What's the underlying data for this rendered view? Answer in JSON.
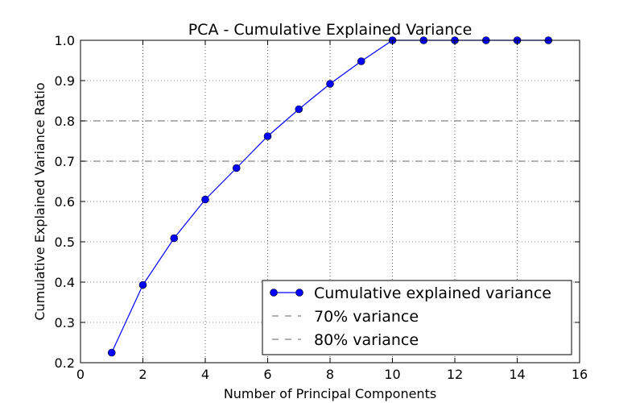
{
  "chart_data": {
    "type": "line",
    "title": "PCA - Cumulative Explained Variance",
    "xlabel": "Number of Principal Components",
    "ylabel": "Cumulative Explained Variance Ratio",
    "xlim": [
      0,
      16
    ],
    "ylim": [
      0.2,
      1.0
    ],
    "xticks": [
      "0",
      "2",
      "4",
      "6",
      "8",
      "10",
      "12",
      "14",
      "16"
    ],
    "yticks": [
      "0.2",
      "0.3",
      "0.4",
      "0.5",
      "0.6",
      "0.7",
      "0.8",
      "0.9",
      "1.0"
    ],
    "grid": true,
    "legend_position": "bottom-right",
    "series": [
      {
        "name": "Cumulative explained variance",
        "color": "#0000ff",
        "marker": "circle",
        "x": [
          1,
          2,
          3,
          4,
          5,
          6,
          7,
          8,
          9,
          10,
          11,
          12,
          13,
          14,
          15
        ],
        "values": [
          0.225,
          0.393,
          0.509,
          0.605,
          0.683,
          0.762,
          0.829,
          0.892,
          0.948,
          1.0,
          1.0,
          1.0,
          1.0,
          1.0,
          1.0
        ]
      }
    ],
    "reference_lines": [
      {
        "name": "70% variance",
        "y": 0.7,
        "color": "#808080",
        "style": "dashed"
      },
      {
        "name": "80% variance",
        "y": 0.8,
        "color": "#808080",
        "style": "dashed"
      }
    ]
  }
}
